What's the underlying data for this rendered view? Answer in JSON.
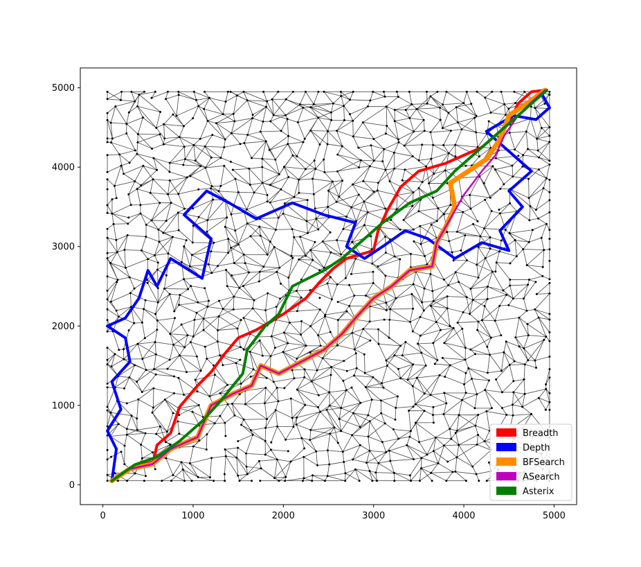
{
  "chart_data": {
    "type": "scatter",
    "title": "",
    "xlabel": "",
    "ylabel": "",
    "xlim": [
      -250,
      5250
    ],
    "ylim": [
      -250,
      5250
    ],
    "xticks": [
      0,
      1000,
      2000,
      3000,
      4000,
      5000
    ],
    "yticks": [
      0,
      1000,
      2000,
      3000,
      4000,
      5000
    ],
    "xtick_labels": [
      "0",
      "1000",
      "2000",
      "3000",
      "4000",
      "5000"
    ],
    "ytick_labels": [
      "0",
      "1000",
      "2000",
      "3000",
      "4000",
      "5000"
    ],
    "grid": false,
    "legend_position": "lower-right",
    "graph": {
      "node_color": "#000000",
      "edge_color": "#555555",
      "domain": [
        0,
        5000
      ]
    },
    "series": [
      {
        "name": "Breadth",
        "color": "#ff0000",
        "points": [
          [
            100,
            50
          ],
          [
            300,
            210
          ],
          [
            560,
            290
          ],
          [
            600,
            500
          ],
          [
            750,
            650
          ],
          [
            850,
            980
          ],
          [
            1050,
            1250
          ],
          [
            1200,
            1420
          ],
          [
            1350,
            1650
          ],
          [
            1500,
            1850
          ],
          [
            1700,
            1950
          ],
          [
            2000,
            2150
          ],
          [
            2250,
            2350
          ],
          [
            2400,
            2550
          ],
          [
            2550,
            2720
          ],
          [
            2700,
            2850
          ],
          [
            3000,
            2950
          ],
          [
            3050,
            3200
          ],
          [
            3150,
            3450
          ],
          [
            3300,
            3750
          ],
          [
            3500,
            3950
          ],
          [
            3800,
            4050
          ],
          [
            4000,
            4150
          ],
          [
            4200,
            4250
          ],
          [
            4350,
            4400
          ],
          [
            4500,
            4550
          ],
          [
            4600,
            4800
          ],
          [
            4750,
            4950
          ],
          [
            4900,
            4970
          ]
        ]
      },
      {
        "name": "Depth",
        "color": "#0000ff",
        "points": [
          [
            100,
            50
          ],
          [
            150,
            450
          ],
          [
            50,
            680
          ],
          [
            200,
            950
          ],
          [
            100,
            1300
          ],
          [
            300,
            1550
          ],
          [
            250,
            1850
          ],
          [
            50,
            2000
          ],
          [
            250,
            2100
          ],
          [
            400,
            2350
          ],
          [
            500,
            2700
          ],
          [
            600,
            2500
          ],
          [
            750,
            2850
          ],
          [
            1100,
            2600
          ],
          [
            1200,
            3100
          ],
          [
            900,
            3400
          ],
          [
            1150,
            3700
          ],
          [
            1400,
            3550
          ],
          [
            1700,
            3350
          ],
          [
            2100,
            3550
          ],
          [
            2450,
            3400
          ],
          [
            2800,
            3300
          ],
          [
            2700,
            3000
          ],
          [
            2900,
            2850
          ],
          [
            3100,
            3000
          ],
          [
            3350,
            3200
          ],
          [
            3600,
            3100
          ],
          [
            3900,
            2850
          ],
          [
            4200,
            3050
          ],
          [
            4500,
            2950
          ],
          [
            4400,
            3200
          ],
          [
            4650,
            3500
          ],
          [
            4500,
            3700
          ],
          [
            4750,
            3950
          ],
          [
            4500,
            4200
          ],
          [
            4250,
            4450
          ],
          [
            4550,
            4650
          ],
          [
            4800,
            4600
          ],
          [
            4950,
            4750
          ],
          [
            4850,
            4950
          ]
        ]
      },
      {
        "name": "BFSearch",
        "color": "#ff8c00",
        "points": [
          [
            100,
            50
          ],
          [
            300,
            200
          ],
          [
            550,
            260
          ],
          [
            750,
            450
          ],
          [
            1050,
            600
          ],
          [
            1200,
            1000
          ],
          [
            1450,
            1150
          ],
          [
            1650,
            1250
          ],
          [
            1750,
            1500
          ],
          [
            1950,
            1400
          ],
          [
            2200,
            1550
          ],
          [
            2450,
            1700
          ],
          [
            2650,
            1900
          ],
          [
            2800,
            2100
          ],
          [
            3000,
            2350
          ],
          [
            3200,
            2500
          ],
          [
            3400,
            2700
          ],
          [
            3650,
            2750
          ],
          [
            3700,
            3050
          ],
          [
            3800,
            3250
          ],
          [
            3900,
            3500
          ],
          [
            3850,
            3800
          ],
          [
            4050,
            3950
          ],
          [
            4250,
            4100
          ],
          [
            4400,
            4350
          ],
          [
            4500,
            4650
          ],
          [
            4700,
            4800
          ],
          [
            4900,
            4970
          ]
        ]
      },
      {
        "name": "ASearch",
        "color": "#bf00bf",
        "points": [
          [
            100,
            50
          ],
          [
            300,
            200
          ],
          [
            550,
            260
          ],
          [
            750,
            450
          ],
          [
            1050,
            600
          ],
          [
            1200,
            1000
          ],
          [
            1450,
            1150
          ],
          [
            1650,
            1250
          ],
          [
            1750,
            1500
          ],
          [
            1950,
            1400
          ],
          [
            2200,
            1550
          ],
          [
            2450,
            1700
          ],
          [
            2650,
            1900
          ],
          [
            2800,
            2100
          ],
          [
            3000,
            2350
          ],
          [
            3200,
            2500
          ],
          [
            3400,
            2700
          ],
          [
            3650,
            2750
          ],
          [
            3700,
            3050
          ],
          [
            3800,
            3250
          ],
          [
            3900,
            3450
          ],
          [
            4000,
            3650
          ],
          [
            4100,
            3800
          ],
          [
            4200,
            3950
          ],
          [
            4350,
            4150
          ],
          [
            4450,
            4400
          ],
          [
            4600,
            4650
          ],
          [
            4750,
            4820
          ],
          [
            4900,
            4970
          ]
        ]
      },
      {
        "name": "Asterix",
        "color": "#008000",
        "points": [
          [
            100,
            50
          ],
          [
            350,
            250
          ],
          [
            600,
            350
          ],
          [
            850,
            550
          ],
          [
            1100,
            800
          ],
          [
            1300,
            1050
          ],
          [
            1550,
            1400
          ],
          [
            1600,
            1700
          ],
          [
            1800,
            2000
          ],
          [
            1950,
            2150
          ],
          [
            2100,
            2500
          ],
          [
            2450,
            2700
          ],
          [
            2650,
            2850
          ],
          [
            2850,
            3050
          ],
          [
            3100,
            3300
          ],
          [
            3400,
            3550
          ],
          [
            3700,
            3700
          ],
          [
            3900,
            3950
          ],
          [
            4100,
            4150
          ],
          [
            4400,
            4450
          ],
          [
            4600,
            4650
          ],
          [
            4800,
            4850
          ],
          [
            4920,
            4970
          ]
        ]
      }
    ]
  }
}
